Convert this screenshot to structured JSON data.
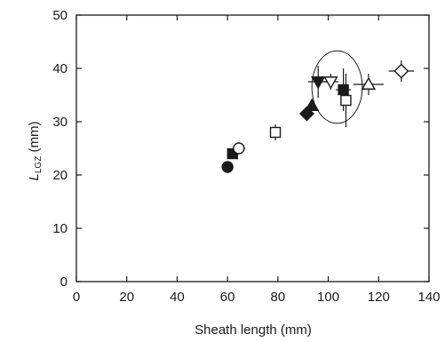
{
  "chart_data": {
    "type": "scatter",
    "title": "",
    "xlabel": "Sheath length (mm)",
    "ylabel_main": "L",
    "ylabel_sub": "LGZ",
    "ylabel_unit": " (mm)",
    "xlim": [
      0,
      140
    ],
    "ylim": [
      0,
      50
    ],
    "xticks": [
      0,
      20,
      40,
      60,
      80,
      100,
      120,
      140
    ],
    "yticks": [
      0,
      10,
      20,
      30,
      40,
      50
    ],
    "grid": false,
    "legend": "none",
    "points": [
      {
        "marker": "circle-filled",
        "x": 60,
        "y": 21.5
      },
      {
        "marker": "square-filled",
        "x": 62,
        "y": 24
      },
      {
        "marker": "circle-open",
        "x": 64.5,
        "y": 25,
        "xerr": 2.5
      },
      {
        "marker": "square-open",
        "x": 79,
        "y": 28,
        "xerr": 2,
        "yerr": 1.5
      },
      {
        "marker": "diamond-filled",
        "x": 91.5,
        "y": 31.5
      },
      {
        "marker": "triangle-up-filled",
        "x": 93.5,
        "y": 33
      },
      {
        "marker": "triangle-down-filled",
        "x": 96,
        "y": 37.5,
        "xerr": 4,
        "yerr": 3
      },
      {
        "marker": "triangle-down-open",
        "x": 101,
        "y": 37.5,
        "xerr": 3,
        "yerr": 1.5
      },
      {
        "marker": "square-filled",
        "x": 106,
        "y": 36,
        "xerr": 3,
        "yerr": 4
      },
      {
        "marker": "square-open",
        "x": 107,
        "y": 34,
        "xerr": 2,
        "yerr": 5
      },
      {
        "marker": "triangle-up-open",
        "x": 116,
        "y": 37,
        "xerr": 6,
        "yerr": 2
      },
      {
        "marker": "diamond-open",
        "x": 129,
        "y": 39.5,
        "xerr": 5,
        "yerr": 2
      }
    ],
    "annotation_circle": {
      "x": 103.5,
      "y": 36.5,
      "rx": 10,
      "ry": 6.8
    },
    "colors": {
      "marker": "#1a1a1a",
      "axis": "#1a1a1a"
    }
  }
}
